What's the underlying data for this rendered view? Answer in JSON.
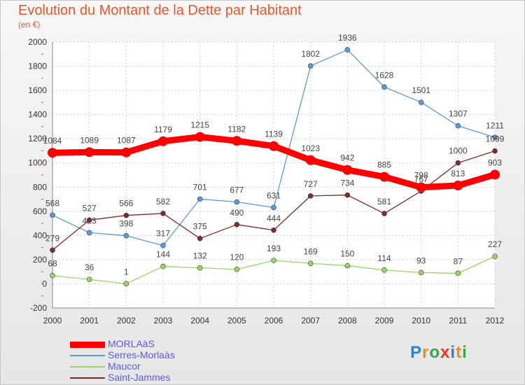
{
  "chart_data": {
    "type": "line",
    "title": "Evolution du Montant de la Dette par Habitant",
    "subtitle": "(en €)",
    "x": [
      "2000",
      "2001",
      "2002",
      "2003",
      "2004",
      "2005",
      "2006",
      "2007",
      "2008",
      "2009",
      "2010",
      "2011",
      "2012"
    ],
    "yticks": [
      -200,
      0,
      200,
      400,
      600,
      800,
      1000,
      1200,
      1400,
      1600,
      1800,
      2000
    ],
    "ylim": [
      -200,
      2000
    ],
    "grid": true,
    "legend_position": "bottom-left",
    "series": [
      {
        "name": "MORLAàS",
        "color": "#ff0000",
        "values": [
          1084,
          1089,
          1087,
          1179,
          1215,
          1182,
          1139,
          1023,
          942,
          885,
          798,
          813,
          903
        ]
      },
      {
        "name": "Serres-Morlaàs",
        "color": "#5b9bd5",
        "values": [
          568,
          423,
          398,
          317,
          701,
          677,
          631,
          1802,
          1936,
          1628,
          1501,
          1307,
          1211
        ]
      },
      {
        "name": "Maucor",
        "color": "#99d566",
        "values": [
          68,
          36,
          1,
          144,
          132,
          120,
          193,
          169,
          150,
          114,
          93,
          87,
          227
        ]
      },
      {
        "name": "Saint-Jammes",
        "color": "#7b2c2c",
        "values": [
          279,
          527,
          566,
          582,
          375,
          490,
          444,
          727,
          734,
          581,
          767,
          1000,
          1099
        ]
      }
    ]
  },
  "logo": {
    "letters": [
      "P",
      "r",
      "o",
      "x",
      "i",
      "t",
      "i"
    ],
    "colors": [
      "#2f7fd8",
      "#f08c1e",
      "#2fa84f",
      "#e23a2a",
      "#2f7fd8",
      "#f08c1e",
      "#2fa84f"
    ]
  }
}
